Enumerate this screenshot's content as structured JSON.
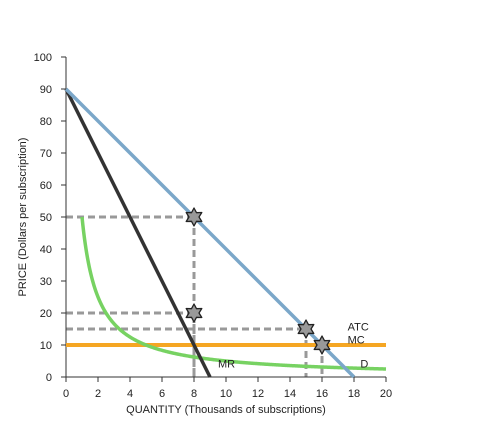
{
  "chart_data": {
    "type": "line",
    "xlabel": "QUANTITY (Thousands of subscriptions)",
    "ylabel": "PRICE (Dollars per subscription)",
    "xlim": [
      0,
      20
    ],
    "ylim": [
      0,
      100
    ],
    "x_ticks": [
      0,
      2,
      4,
      6,
      8,
      10,
      12,
      14,
      16,
      18,
      20
    ],
    "y_ticks": [
      0,
      10,
      20,
      30,
      40,
      50,
      60,
      70,
      80,
      90,
      100
    ],
    "grid": false,
    "series": [
      {
        "name": "D",
        "color": "#7ba7c9",
        "x": [
          0,
          18
        ],
        "y": [
          90,
          0
        ]
      },
      {
        "name": "MR",
        "color": "#333333",
        "x": [
          0,
          9
        ],
        "y": [
          90,
          0
        ]
      },
      {
        "name": "MC",
        "color": "#f5a623",
        "x": [
          0,
          20
        ],
        "y": [
          10,
          10
        ]
      },
      {
        "name": "ATC",
        "color": "#77d262",
        "x": [
          1,
          1.2,
          1.5,
          2,
          2.5,
          3,
          4,
          5,
          6,
          8,
          10,
          12,
          15,
          18,
          20
        ],
        "y": [
          100,
          83.3,
          66.7,
          50,
          40,
          33.3,
          25,
          20,
          16.7,
          12.5,
          10,
          8.3,
          6.7,
          5.6,
          5
        ]
      }
    ],
    "labels": [
      {
        "text": "MR",
        "x": 9.5,
        "y": 3
      },
      {
        "text": "D",
        "x": 18.4,
        "y": 3
      },
      {
        "text": "ATC",
        "x": 17.6,
        "y": 14.5
      },
      {
        "text": "MC",
        "x": 17.6,
        "y": 10.5
      }
    ],
    "reference_lines": [
      {
        "x": 8,
        "y": 50
      },
      {
        "x": 8,
        "y": 20
      },
      {
        "x": 15,
        "y": 15
      },
      {
        "x": 16,
        "y": 10
      }
    ],
    "markers": [
      {
        "x": 8,
        "y": 50
      },
      {
        "x": 8,
        "y": 20
      },
      {
        "x": 15,
        "y": 15
      },
      {
        "x": 16,
        "y": 10
      }
    ]
  }
}
